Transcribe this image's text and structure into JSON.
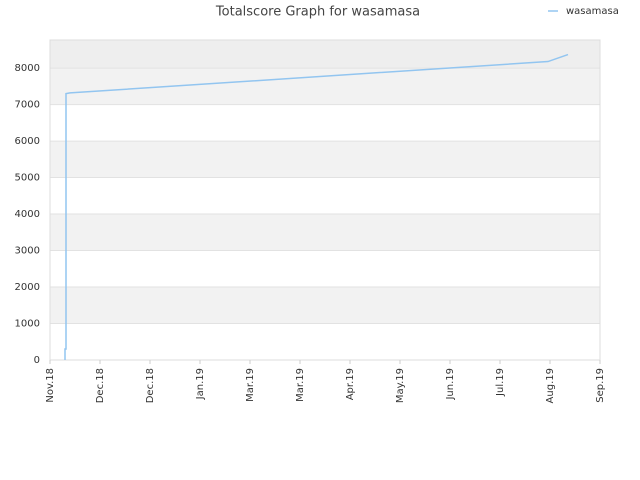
{
  "chart_data": {
    "type": "line",
    "title": "Totalscore Graph for wasamasa",
    "x": [
      0.3,
      0.3,
      0.32,
      0.32,
      0.4,
      9.96,
      10.36
    ],
    "series": [
      {
        "name": "wasamasa",
        "color": "#92c5f0",
        "values": [
          0,
          300,
          300,
          7300,
          7320,
          8180,
          8370
        ]
      }
    ],
    "xlim": [
      0,
      11
    ],
    "xticks": [
      {
        "value": 0,
        "label": "Nov.18"
      },
      {
        "value": 1,
        "label": "Dec.18"
      },
      {
        "value": 2,
        "label": "Dec.18"
      },
      {
        "value": 3,
        "label": "Jan.19"
      },
      {
        "value": 4,
        "label": "Mar.19"
      },
      {
        "value": 5,
        "label": "Mar.19"
      },
      {
        "value": 6,
        "label": "Apr.19"
      },
      {
        "value": 7,
        "label": "May.19"
      },
      {
        "value": 8,
        "label": "Jun.19"
      },
      {
        "value": 9,
        "label": "Jul.19"
      },
      {
        "value": 10,
        "label": "Aug.19"
      },
      {
        "value": 11,
        "label": "Sep.19"
      }
    ],
    "ylim": [
      0,
      8770
    ],
    "yticks": [
      0,
      1000,
      2000,
      3000,
      4000,
      5000,
      6000,
      7000,
      8000
    ],
    "grid": true,
    "legend": "top-right"
  }
}
